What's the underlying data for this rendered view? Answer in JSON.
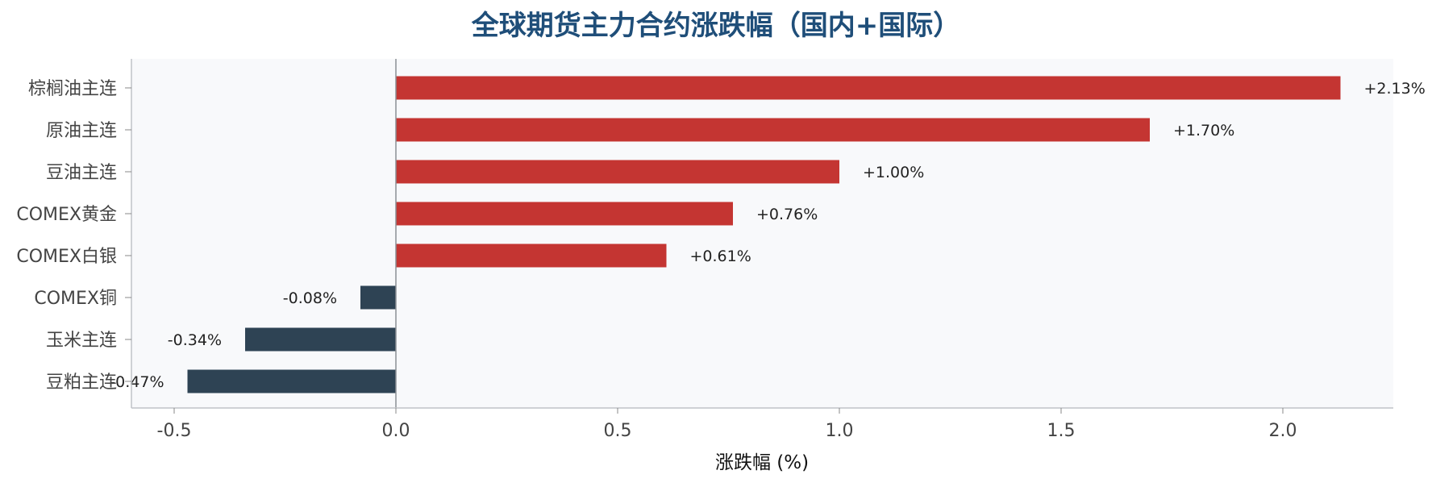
{
  "chart_data": {
    "type": "bar",
    "orientation": "horizontal",
    "title": "全球期货主力合约涨跌幅（国内+国际）",
    "xlabel": "涨跌幅 (%)",
    "ylabel": "",
    "categories": [
      "棕榈油主连",
      "原油主连",
      "豆油主连",
      "COMEX黄金",
      "COMEX白银",
      "COMEX铜",
      "玉米主连",
      "豆粕主连"
    ],
    "values": [
      2.13,
      1.7,
      1.0,
      0.76,
      0.61,
      -0.08,
      -0.34,
      -0.47
    ],
    "data_labels": [
      "+2.13%",
      "+1.70%",
      "+1.00%",
      "+0.76%",
      "+0.61%",
      "-0.08%",
      "-0.34%",
      "-0.47%"
    ],
    "xlim": [
      -0.6,
      2.25
    ],
    "xticks": [
      -0.5,
      0.0,
      0.5,
      1.0,
      1.5,
      2.0
    ],
    "xtick_labels": [
      "-0.5",
      "0.0",
      "0.5",
      "1.0",
      "1.5",
      "2.0"
    ],
    "grid": false,
    "colors": {
      "positive": "#c43532",
      "negative": "#2e4354",
      "plot_background": "#f8f9fb",
      "title": "#1f4e79",
      "axis": "#bfc3c8",
      "zero_line": "#8a8f94"
    }
  }
}
